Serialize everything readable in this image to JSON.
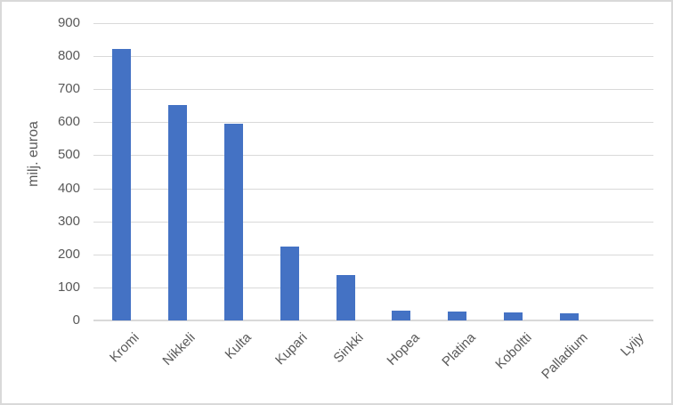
{
  "chart_data": {
    "type": "bar",
    "categories": [
      "Kromi",
      "Nikkeli",
      "Kulta",
      "Kupari",
      "Sinkki",
      "Hopea",
      "Platina",
      "Koboltti",
      "Palladium",
      "Lyijy"
    ],
    "values": [
      821,
      653,
      596,
      223,
      137,
      30,
      28,
      25,
      22,
      0
    ],
    "ylabel": "milj. euroa",
    "ylim": [
      0,
      900
    ],
    "ytick_step": 100,
    "ytick_labels": [
      "0",
      "100",
      "200",
      "300",
      "400",
      "500",
      "600",
      "700",
      "800",
      "900"
    ],
    "grid": true,
    "legend": false,
    "bar_color": "#4472C4",
    "text_color": "#595959",
    "gridline_color": "#D9D9D9",
    "axis_line_color": "#D9D9D9",
    "border_color": "#D9D9D9",
    "background": "#FFFFFF"
  }
}
